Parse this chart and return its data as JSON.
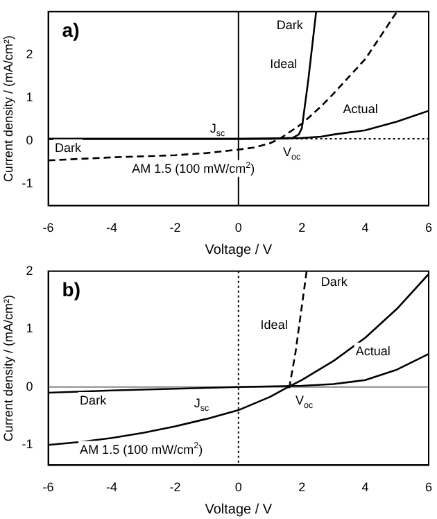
{
  "chart_data": [
    {
      "type": "line",
      "title": "a)",
      "xlabel": "Voltage / V",
      "ylabel": "Current density / (mA/cm²)",
      "xlim": [
        -6,
        6
      ],
      "ylim": [
        -1.5,
        3
      ],
      "xticks": [
        -6,
        -4,
        -2,
        0,
        2,
        4,
        6
      ],
      "yticks": [
        -1,
        0,
        1,
        2
      ],
      "grid": false,
      "legend": false,
      "marker": "none",
      "series": [
        {
          "color": "#000000",
          "line_style": "solid",
          "x": [
            -6,
            -2,
            0,
            1,
            1.7,
            1.9,
            2.0,
            2.2,
            2.45
          ],
          "values": [
            0.05,
            0.05,
            0.05,
            0.05,
            0.07,
            0.15,
            0.3,
            1.4,
            3
          ]
        },
        {
          "color": "#000000",
          "line_style": "solid",
          "x": [
            -6,
            0,
            2,
            2.6,
            3,
            4,
            5,
            6
          ],
          "values": [
            0.05,
            0.05,
            0.07,
            0.1,
            0.15,
            0.25,
            0.45,
            0.7
          ]
        },
        {
          "color": "#000000",
          "line_style": "dashed",
          "x": [
            -6,
            -4,
            -2,
            -1,
            0,
            0.5,
            1,
            1.3,
            1.6,
            2,
            2.6,
            3,
            4,
            5
          ],
          "values": [
            -0.45,
            -0.38,
            -0.33,
            -0.28,
            -0.2,
            -0.15,
            -0.05,
            0.05,
            0.2,
            0.4,
            0.8,
            1.1,
            1.9,
            3
          ]
        }
      ],
      "ref_lines": [
        {
          "axis": "y",
          "value": 0.05,
          "line_style": "dotted",
          "color": "#000000"
        },
        {
          "axis": "x",
          "value": 0,
          "line_style": "solid",
          "color": "#000000"
        }
      ],
      "annotations": [
        "Dark",
        "Ideal",
        "Actual",
        "J$_{sc}$",
        "V$_{oc}$",
        "Dark",
        "AM 1.5 (100 mW/cm$^{2}$)"
      ]
    },
    {
      "type": "line",
      "title": "b)",
      "xlabel": "Voltage / V",
      "ylabel": "Current density / (mA/cm²)",
      "xlim": [
        -6,
        6
      ],
      "ylim": [
        -1.35,
        2
      ],
      "xticks": [
        -6,
        -4,
        -2,
        0,
        2,
        4,
        6
      ],
      "yticks": [
        -1,
        0,
        1,
        2
      ],
      "grid": false,
      "legend": false,
      "marker": "none",
      "series": [
        {
          "color": "#000000",
          "line_style": "solid",
          "x": [
            -6,
            -4,
            -2,
            0,
            2,
            3,
            4,
            5,
            6
          ],
          "values": [
            -0.1,
            -0.06,
            -0.03,
            0,
            0.02,
            0.05,
            0.12,
            0.3,
            0.57
          ]
        },
        {
          "color": "#000000",
          "line_style": "solid",
          "x": [
            -6,
            -5,
            -4,
            -3,
            -2,
            -1,
            0,
            1,
            1.5,
            2,
            3,
            4,
            5,
            6
          ],
          "values": [
            -1.0,
            -0.95,
            -0.88,
            -0.79,
            -0.68,
            -0.55,
            -0.4,
            -0.17,
            -0.02,
            0.12,
            0.45,
            0.85,
            1.35,
            1.95
          ]
        },
        {
          "color": "#000000",
          "line_style": "dashed",
          "x": [
            1.6,
            1.8,
            2.0,
            2.15
          ],
          "values": [
            -0.02,
            0.6,
            1.4,
            2
          ]
        }
      ],
      "ref_lines": [
        {
          "axis": "y",
          "value": 0,
          "line_style": "solid",
          "color": "#888888"
        },
        {
          "axis": "x",
          "value": 0,
          "line_style": "dotted",
          "color": "#000000"
        }
      ],
      "annotations": [
        "Dark",
        "Ideal",
        "Actual",
        "J$_{sc}$",
        "V$_{oc}$",
        "Dark",
        "AM 1.5 (100 mW/cm$^{2}$)"
      ]
    }
  ]
}
